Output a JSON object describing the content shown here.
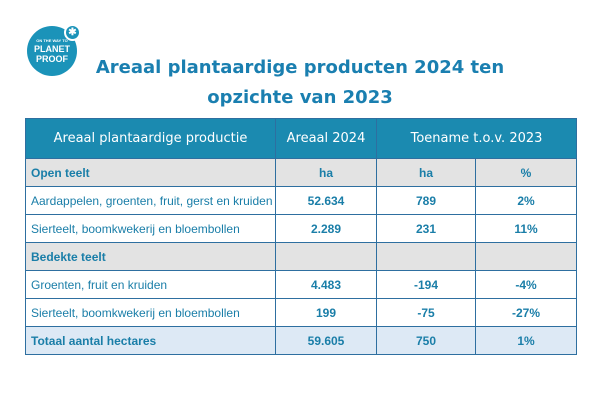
{
  "logo": {
    "top": "ON THE WAY TO",
    "line1": "PLANET",
    "line2": "PROOF"
  },
  "title": "Areaal plantaardige producten 2024 ten opzichte van 2023",
  "table": {
    "headers": [
      "Areaal plantaardige productie",
      "Areaal 2024",
      "Toename t.o.v. 2023"
    ],
    "rows": [
      {
        "type": "sec",
        "cells": [
          "Open teelt",
          "ha",
          "ha",
          "%"
        ]
      },
      {
        "type": "row",
        "cells": [
          "Aardappelen, groenten, fruit, gerst en kruiden",
          "52.634",
          "789",
          "2%"
        ]
      },
      {
        "type": "row",
        "cells": [
          "Sierteelt, boomkwekerij en bloembollen",
          "2.289",
          "231",
          "11%"
        ]
      },
      {
        "type": "sec",
        "cells": [
          "Bedekte teelt",
          "",
          "",
          ""
        ]
      },
      {
        "type": "row",
        "cells": [
          "Groenten, fruit en kruiden",
          "4.483",
          "-194",
          "-4%"
        ]
      },
      {
        "type": "row",
        "cells": [
          "Sierteelt, boomkwekerij en bloembollen",
          "199",
          "-75",
          "-27%"
        ]
      },
      {
        "type": "tot",
        "cells": [
          "Totaal aantal hectares",
          "59.605",
          "750",
          "1%"
        ]
      }
    ]
  },
  "colors": {
    "header": "#1b8ab0",
    "text": "#1a7ea8",
    "section": "#e3e3e3",
    "total": "#dde9f5"
  }
}
